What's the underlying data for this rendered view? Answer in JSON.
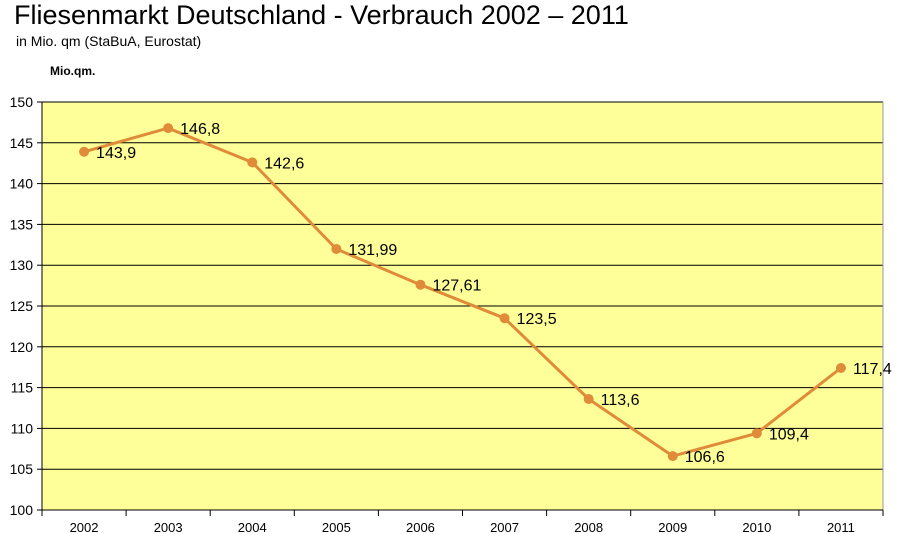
{
  "chart_data": {
    "type": "line",
    "title": "Fliesenmarkt Deutschland - Verbrauch 2002 – 2011",
    "subtitle": "in Mio. qm (StaBuA, Eurostat)",
    "ylabel": "Mio.qm.",
    "xlabel": "",
    "categories": [
      "2002",
      "2003",
      "2004",
      "2005",
      "2006",
      "2007",
      "2008",
      "2009",
      "2010",
      "2011"
    ],
    "values": [
      143.9,
      146.8,
      142.6,
      131.99,
      127.61,
      123.5,
      113.6,
      106.6,
      109.4,
      117.4
    ],
    "value_labels": [
      "143,9",
      "146,8",
      "142,6",
      "131,99",
      "127,61",
      "123,5",
      "113,6",
      "106,6",
      "109,4",
      "117,4"
    ],
    "ylim": [
      100,
      150
    ],
    "yticks": [
      "100",
      "105",
      "110",
      "115",
      "120",
      "125",
      "130",
      "135",
      "140",
      "145",
      "150"
    ],
    "grid": true,
    "legend": "none",
    "colors": {
      "plot_background": "#FFFF99",
      "line": "#E08B3A",
      "marker": "#E08B3A",
      "gridline": "#000000"
    }
  }
}
